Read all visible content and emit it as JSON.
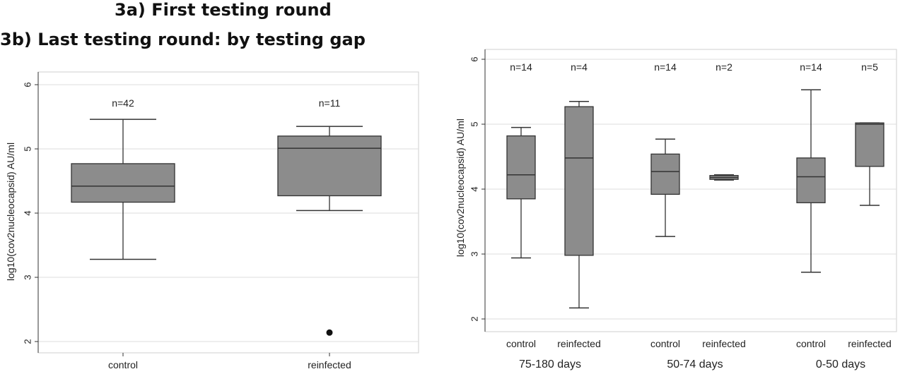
{
  "headings": {
    "a": "3a) First testing round",
    "b": "3b) Last testing round: by testing gap"
  },
  "chart_data": [
    {
      "type": "boxplot",
      "ylabel": "log10(cov2nucleocapsid) AU/ml",
      "ylim": [
        1.9,
        6.2
      ],
      "yticks": [
        "2",
        "3",
        "4",
        "5",
        "6"
      ],
      "grid": true,
      "categories": [
        "control",
        "reinfected"
      ],
      "boxes": [
        {
          "category": "control",
          "n_label": "n=42",
          "min": 3.28,
          "q1": 4.17,
          "median": 4.42,
          "q3": 4.77,
          "max": 5.46,
          "outliers": []
        },
        {
          "category": "reinfected",
          "n_label": "n=11",
          "min": 4.04,
          "q1": 4.27,
          "median": 5.01,
          "q3": 5.2,
          "max": 5.35,
          "outliers": [
            2.14
          ]
        }
      ]
    },
    {
      "type": "boxplot",
      "ylabel": "log10(cov2nucleocapsid) AU/ml",
      "ylim": [
        1.9,
        6.1
      ],
      "yticks": [
        "2",
        "3",
        "4",
        "5",
        "6"
      ],
      "grid": true,
      "groups": [
        "75-180 days",
        "50-74 days",
        "0-50 days"
      ],
      "boxes": [
        {
          "group": "75-180 days",
          "category": "control",
          "n_label": "n=14",
          "min": 2.94,
          "q1": 3.85,
          "median": 4.22,
          "q3": 4.82,
          "max": 4.95,
          "outliers": []
        },
        {
          "group": "75-180 days",
          "category": "reinfected",
          "n_label": "n=4",
          "min": 2.17,
          "q1": 2.98,
          "median": 4.48,
          "q3": 5.27,
          "max": 5.35,
          "outliers": []
        },
        {
          "group": "50-74 days",
          "category": "control",
          "n_label": "n=14",
          "min": 3.27,
          "q1": 3.92,
          "median": 4.27,
          "q3": 4.54,
          "max": 4.77,
          "outliers": []
        },
        {
          "group": "50-74 days",
          "category": "reinfected",
          "n_label": "n=2",
          "min": 4.14,
          "q1": 4.15,
          "median": 4.18,
          "q3": 4.21,
          "max": 4.22,
          "outliers": []
        },
        {
          "group": "0-50 days",
          "category": "control",
          "n_label": "n=14",
          "min": 2.72,
          "q1": 3.79,
          "median": 4.19,
          "q3": 4.48,
          "max": 5.53,
          "outliers": []
        },
        {
          "group": "0-50 days",
          "category": "reinfected",
          "n_label": "n=5",
          "min": 3.75,
          "q1": 4.35,
          "median": 5.0,
          "q3": 5.02,
          "max": 5.02,
          "outliers": []
        }
      ]
    }
  ]
}
